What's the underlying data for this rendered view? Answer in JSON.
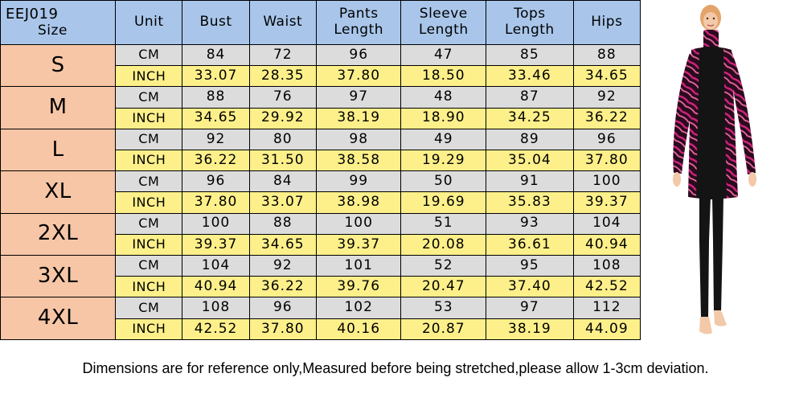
{
  "table": {
    "code": "EEJ019",
    "size_header": "Size",
    "headers": [
      {
        "line1": "Unit",
        "line2": ""
      },
      {
        "line1": "Bust",
        "line2": ""
      },
      {
        "line1": "Waist",
        "line2": ""
      },
      {
        "line1": "Pants",
        "line2": "Length"
      },
      {
        "line1": "Sleeve",
        "line2": "Length"
      },
      {
        "line1": "Tops",
        "line2": "Length"
      },
      {
        "line1": "Hips",
        "line2": ""
      }
    ],
    "rows": [
      {
        "size": "S",
        "cm": [
          "CM",
          "84",
          "72",
          "96",
          "47",
          "85",
          "88"
        ],
        "inch": [
          "INCH",
          "33.07",
          "28.35",
          "37.80",
          "18.50",
          "33.46",
          "34.65"
        ]
      },
      {
        "size": "M",
        "cm": [
          "CM",
          "88",
          "76",
          "97",
          "48",
          "87",
          "92"
        ],
        "inch": [
          "INCH",
          "34.65",
          "29.92",
          "38.19",
          "18.90",
          "34.25",
          "36.22"
        ]
      },
      {
        "size": "L",
        "cm": [
          "CM",
          "92",
          "80",
          "98",
          "49",
          "89",
          "96"
        ],
        "inch": [
          "INCH",
          "36.22",
          "31.50",
          "38.58",
          "19.29",
          "35.04",
          "37.80"
        ]
      },
      {
        "size": "XL",
        "cm": [
          "CM",
          "96",
          "84",
          "99",
          "50",
          "91",
          "100"
        ],
        "inch": [
          "INCH",
          "37.80",
          "33.07",
          "38.98",
          "19.69",
          "35.83",
          "39.37"
        ]
      },
      {
        "size": "2XL",
        "cm": [
          "CM",
          "100",
          "88",
          "100",
          "51",
          "93",
          "104"
        ],
        "inch": [
          "INCH",
          "39.37",
          "34.65",
          "39.37",
          "20.08",
          "36.61",
          "40.94"
        ]
      },
      {
        "size": "3XL",
        "cm": [
          "CM",
          "104",
          "92",
          "101",
          "52",
          "95",
          "108"
        ],
        "inch": [
          "INCH",
          "40.94",
          "36.22",
          "39.76",
          "20.47",
          "37.40",
          "42.52"
        ]
      },
      {
        "size": "4XL",
        "cm": [
          "CM",
          "108",
          "96",
          "102",
          "53",
          "97",
          "112"
        ],
        "inch": [
          "INCH",
          "42.52",
          "37.80",
          "40.16",
          "20.87",
          "38.19",
          "44.09"
        ]
      }
    ]
  },
  "note": "Dimensions are for reference only,Measured before being stretched,please allow 1-3cm deviation.",
  "colors": {
    "header_blue": "#a9c6ea",
    "size_peach": "#f6c6a6",
    "cm_gray": "#dcdcdc",
    "inch_yellow": "#fdf08a",
    "swimsuit_black": "#141414",
    "pattern_magenta": "#c41c78"
  },
  "photo": {
    "icon": "model-in-burkini-swimsuit-photo"
  }
}
